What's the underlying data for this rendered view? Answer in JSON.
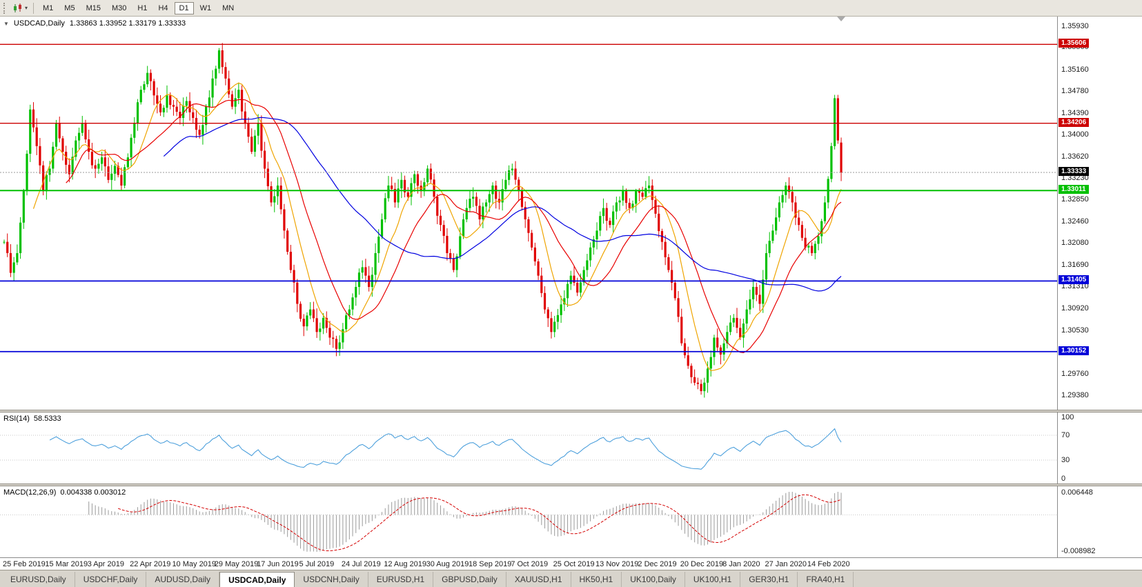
{
  "toolbar": {
    "timeframes": [
      "M1",
      "M5",
      "M15",
      "M30",
      "H1",
      "H4",
      "D1",
      "W1",
      "MN"
    ],
    "active_timeframe": "D1",
    "chart_type_icon": "candlestick-icon"
  },
  "chart": {
    "title": {
      "collapse_icon": "▼",
      "symbol_period": "USDCAD,Daily",
      "ohlc_text": "1.33863 1.33952 1.33179 1.33333"
    },
    "axis": {
      "ticks": [
        "1.35930",
        "1.35560",
        "1.35160",
        "1.34780",
        "1.34390",
        "1.34000",
        "1.33620",
        "1.33230",
        "1.32850",
        "1.32460",
        "1.32080",
        "1.31690",
        "1.31310",
        "1.30920",
        "1.30530",
        "1.30150",
        "1.29760",
        "1.29380"
      ]
    },
    "levels": [
      {
        "price": 1.35606,
        "label": "1.35606",
        "line_color": "#CC0000",
        "label_bg": "#CC0000",
        "width": 1.4,
        "dash": "",
        "current": false
      },
      {
        "price": 1.34206,
        "label": "1.34206",
        "line_color": "#CC0000",
        "label_bg": "#CC0000",
        "width": 1.4,
        "dash": "",
        "current": false
      },
      {
        "price": 1.33333,
        "label": "1.33333",
        "line_color": "#9a9a9a",
        "label_bg": "#000000",
        "width": 1,
        "dash": "2,2",
        "current": true
      },
      {
        "price": 1.33011,
        "label": "1.33011",
        "line_color": "#00C000",
        "label_bg": "#00C000",
        "width": 2,
        "dash": "",
        "current": false
      },
      {
        "price": 1.31405,
        "label": "1.31405",
        "line_color": "#0000D8",
        "label_bg": "#0000D8",
        "width": 1.8,
        "dash": "",
        "current": false
      },
      {
        "price": 1.30152,
        "label": "1.30152",
        "line_color": "#0000D8",
        "label_bg": "#0000D8",
        "width": 1.8,
        "dash": "",
        "current": false
      }
    ],
    "dates": [
      {
        "label": "25 Feb 2019",
        "day": 0
      },
      {
        "label": "15 Mar 2019",
        "day": 13
      },
      {
        "label": "3 Apr 2019",
        "day": 26
      },
      {
        "label": "22 Apr 2019",
        "day": 39
      },
      {
        "label": "10 May 2019",
        "day": 52
      },
      {
        "label": "29 May 2019",
        "day": 65
      },
      {
        "label": "17 Jun 2019",
        "day": 78
      },
      {
        "label": "5 Jul 2019",
        "day": 91
      },
      {
        "label": "24 Jul 2019",
        "day": 104
      },
      {
        "label": "12 Aug 2019",
        "day": 117
      },
      {
        "label": "30 Aug 2019",
        "day": 130
      },
      {
        "label": "18 Sep 2019",
        "day": 143
      },
      {
        "label": "7 Oct 2019",
        "day": 156
      },
      {
        "label": "25 Oct 2019",
        "day": 169
      },
      {
        "label": "13 Nov 2019",
        "day": 182
      },
      {
        "label": "2 Dec 2019",
        "day": 195
      },
      {
        "label": "20 Dec 2019",
        "day": 208
      },
      {
        "label": "8 Jan 2020",
        "day": 221
      },
      {
        "label": "27 Jan 2020",
        "day": 234
      },
      {
        "label": "14 Feb 2020",
        "day": 247
      }
    ]
  },
  "rsi": {
    "name": "RSI(14)",
    "value": "58.5333"
  },
  "macd": {
    "name": "MACD(12,26,9)",
    "values": "0.004338 0.003012",
    "axis_top": "0.006448",
    "axis_bottom": "-0.008982"
  },
  "tabs": {
    "active_index": 3,
    "items": [
      "EURUSD,Daily",
      "USDCHF,Daily",
      "AUDUSD,Daily",
      "USDCAD,Daily",
      "USDCNH,Daily",
      "EURUSD,H1",
      "GBPUSD,Daily",
      "XAUUSD,H1",
      "HK50,H1",
      "UK100,Daily",
      "UK100,H1",
      "GER30,H1",
      "FRA40,H1"
    ]
  },
  "chart_data": {
    "type": "candlestick",
    "symbol": "USDCAD",
    "timeframe": "Daily",
    "days": 258,
    "noise": 0.0009,
    "colors": {
      "up": "#00C000",
      "down": "#E00000"
    },
    "price_axis": {
      "max": 1.361,
      "min": 1.2912
    },
    "last_candle": {
      "open": 1.33863,
      "high": 1.33952,
      "low": 1.33179,
      "close": 1.33333
    },
    "horizontal_levels": [
      1.35606,
      1.34206,
      1.33011,
      1.31405,
      1.30152
    ],
    "current_price": 1.33333,
    "moving_averages": [
      {
        "period": 10,
        "color": "#EFA400"
      },
      {
        "period": 20,
        "color": "#E80000"
      },
      {
        "period": 50,
        "color": "#0000E0"
      }
    ],
    "rsi": {
      "period": 14,
      "current": 58.5333,
      "color": "#4DA0DC",
      "axis_levels": [
        100,
        70,
        30,
        0
      ],
      "dashed_levels": [
        70,
        30
      ]
    },
    "macd": {
      "fast": 12,
      "slow": 26,
      "signal": 9,
      "current_macd": 0.004338,
      "current_signal": 0.003012,
      "axis_max": 0.006448,
      "axis_min": -0.008982,
      "hist_color": "#9a9a9a",
      "signal_color": "#D40000"
    },
    "price_path_anchors": [
      [
        0,
        1.321
      ],
      [
        2,
        1.3155
      ],
      [
        4,
        1.319
      ],
      [
        6,
        1.33
      ],
      [
        8,
        1.3445
      ],
      [
        10,
        1.338
      ],
      [
        12,
        1.33
      ],
      [
        14,
        1.334
      ],
      [
        16,
        1.342
      ],
      [
        18,
        1.337
      ],
      [
        20,
        1.333
      ],
      [
        22,
        1.339
      ],
      [
        24,
        1.342
      ],
      [
        26,
        1.337
      ],
      [
        28,
        1.334
      ],
      [
        30,
        1.336
      ],
      [
        32,
        1.332
      ],
      [
        34,
        1.3345
      ],
      [
        36,
        1.331
      ],
      [
        38,
        1.336
      ],
      [
        40,
        1.342
      ],
      [
        42,
        1.348
      ],
      [
        44,
        1.351
      ],
      [
        46,
        1.347
      ],
      [
        48,
        1.344
      ],
      [
        50,
        1.347
      ],
      [
        52,
        1.345
      ],
      [
        54,
        1.343
      ],
      [
        56,
        1.346
      ],
      [
        58,
        1.343
      ],
      [
        60,
        1.34
      ],
      [
        62,
        1.345
      ],
      [
        64,
        1.35
      ],
      [
        66,
        1.355
      ],
      [
        68,
        1.35
      ],
      [
        70,
        1.345
      ],
      [
        72,
        1.348
      ],
      [
        74,
        1.342
      ],
      [
        76,
        1.337
      ],
      [
        78,
        1.342
      ],
      [
        80,
        1.334
      ],
      [
        82,
        1.328
      ],
      [
        84,
        1.331
      ],
      [
        86,
        1.323
      ],
      [
        88,
        1.316
      ],
      [
        90,
        1.31
      ],
      [
        92,
        1.306
      ],
      [
        94,
        1.309
      ],
      [
        96,
        1.305
      ],
      [
        98,
        1.3075
      ],
      [
        100,
        1.304
      ],
      [
        102,
        1.302
      ],
      [
        104,
        1.3055
      ],
      [
        106,
        1.309
      ],
      [
        108,
        1.313
      ],
      [
        110,
        1.3165
      ],
      [
        112,
        1.313
      ],
      [
        114,
        1.319
      ],
      [
        116,
        1.325
      ],
      [
        118,
        1.331
      ],
      [
        120,
        1.328
      ],
      [
        122,
        1.332
      ],
      [
        124,
        1.329
      ],
      [
        126,
        1.333
      ],
      [
        128,
        1.33
      ],
      [
        130,
        1.334
      ],
      [
        132,
        1.329
      ],
      [
        134,
        1.324
      ],
      [
        136,
        1.319
      ],
      [
        138,
        1.316
      ],
      [
        140,
        1.322
      ],
      [
        142,
        1.327
      ],
      [
        144,
        1.329
      ],
      [
        146,
        1.325
      ],
      [
        148,
        1.328
      ],
      [
        150,
        1.331
      ],
      [
        152,
        1.328
      ],
      [
        154,
        1.332
      ],
      [
        156,
        1.334
      ],
      [
        158,
        1.33
      ],
      [
        160,
        1.325
      ],
      [
        162,
        1.32
      ],
      [
        164,
        1.315
      ],
      [
        166,
        1.309
      ],
      [
        168,
        1.305
      ],
      [
        170,
        1.308
      ],
      [
        172,
        1.311
      ],
      [
        174,
        1.315
      ],
      [
        176,
        1.312
      ],
      [
        178,
        1.316
      ],
      [
        180,
        1.32
      ],
      [
        182,
        1.323
      ],
      [
        184,
        1.327
      ],
      [
        186,
        1.324
      ],
      [
        188,
        1.328
      ],
      [
        190,
        1.33
      ],
      [
        192,
        1.327
      ],
      [
        194,
        1.33
      ],
      [
        196,
        1.329
      ],
      [
        198,
        1.331
      ],
      [
        200,
        1.326
      ],
      [
        202,
        1.321
      ],
      [
        204,
        1.316
      ],
      [
        206,
        1.311
      ],
      [
        208,
        1.303
      ],
      [
        210,
        1.299
      ],
      [
        212,
        1.296
      ],
      [
        214,
        1.2945
      ],
      [
        216,
        1.2985
      ],
      [
        218,
        1.304
      ],
      [
        220,
        1.301
      ],
      [
        222,
        1.305
      ],
      [
        224,
        1.3075
      ],
      [
        226,
        1.304
      ],
      [
        228,
        1.309
      ],
      [
        230,
        1.313
      ],
      [
        232,
        1.31
      ],
      [
        234,
        1.319
      ],
      [
        236,
        1.323
      ],
      [
        238,
        1.328
      ],
      [
        240,
        1.331
      ],
      [
        242,
        1.328
      ],
      [
        244,
        1.324
      ],
      [
        246,
        1.32
      ],
      [
        248,
        1.319
      ],
      [
        250,
        1.322
      ],
      [
        252,
        1.328
      ],
      [
        254,
        1.338
      ],
      [
        255,
        1.3465
      ],
      [
        256,
        1.339
      ],
      [
        257,
        1.33333
      ]
    ]
  }
}
